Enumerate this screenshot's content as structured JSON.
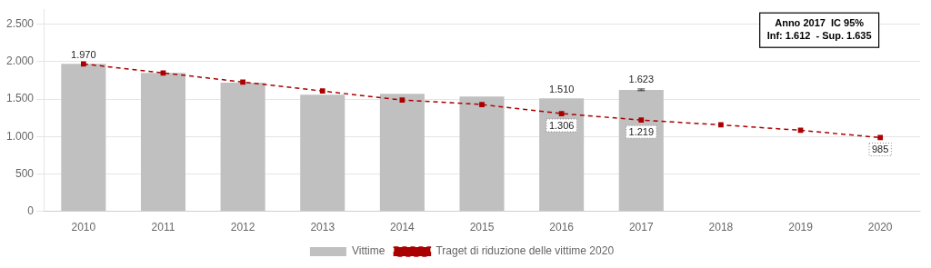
{
  "chart_data": {
    "type": "bar",
    "categories": [
      "2010",
      "2011",
      "2012",
      "2013",
      "2014",
      "2015",
      "2016",
      "2017",
      "2018",
      "2019",
      "2020"
    ],
    "series": [
      {
        "name": "Vittime",
        "type": "bar",
        "color": "#c0c0c0",
        "values": [
          1970,
          1851,
          1718,
          1558,
          1571,
          1534,
          1510,
          1623,
          null,
          null,
          null
        ],
        "value_labels": [
          "1.970",
          null,
          null,
          null,
          null,
          null,
          "1.510",
          "1.623",
          null,
          null,
          null
        ],
        "error_low": [
          null,
          null,
          null,
          null,
          null,
          null,
          null,
          1612,
          null,
          null,
          null
        ],
        "error_high": [
          null,
          null,
          null,
          null,
          null,
          null,
          null,
          1635,
          null,
          null,
          null
        ]
      },
      {
        "name": "Traget di riduzione delle vittime 2020",
        "type": "line",
        "color": "#aa0000",
        "line_style": "dashed",
        "marker": "square",
        "values": [
          1970,
          1849,
          1728,
          1607,
          1486,
          1427,
          1306,
          1219,
          1155,
          1083,
          985
        ],
        "value_labels": [
          null,
          null,
          null,
          null,
          null,
          null,
          "1.306",
          "1.219",
          null,
          null,
          "985"
        ]
      }
    ],
    "annotations": [
      "Anno 2017  IC 95%\nInf: 1.612  - Sup. 1.635"
    ],
    "ylim": [
      0,
      2700
    ],
    "yticks": [
      0,
      500,
      {
        "value": 1000,
        "label": "1.000"
      },
      {
        "value": 1500,
        "label": "1.500"
      },
      {
        "value": 2000,
        "label": "2.000"
      },
      {
        "value": 2500,
        "label": "2.500"
      }
    ],
    "grid": true,
    "legend": "bottom"
  }
}
